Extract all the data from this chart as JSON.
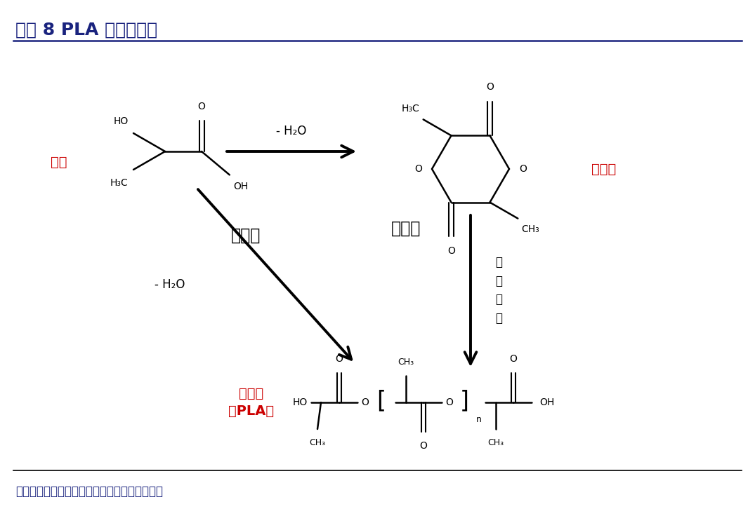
{
  "title": "图表 8 PLA 制备化学式",
  "title_color": "#1a237e",
  "title_fontsize": 18,
  "background_color": "#ffffff",
  "footer_text": "资料来源：《乙醛醋酸化工》，华安证券研究所",
  "footer_color": "#1a237e",
  "footer_fontsize": 12,
  "label_lactic_acid": "乳酸",
  "label_lactic_acid_color": "#cc0000",
  "label_lactide": "丙交酯",
  "label_lactide_color": "#cc0000",
  "label_pla": "聚乳酸\n（PLA）",
  "label_pla_color": "#cc0000",
  "label_two_step": "两步法",
  "label_one_step": "一步法",
  "label_h2o_top": "- H₂O",
  "label_h2o_bottom": "- H₂O",
  "label_ring_open": "开\n环\n聚\n合"
}
